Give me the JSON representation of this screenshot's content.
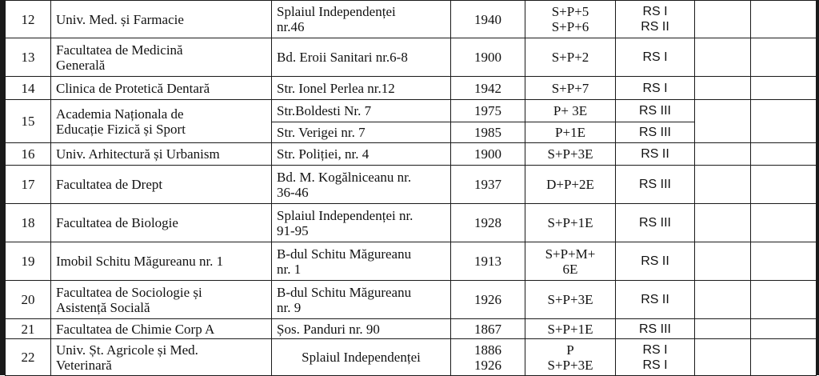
{
  "rows": [
    {
      "nr": "12",
      "name": [
        "Univ. Med. și  Farmacie"
      ],
      "addr": [
        "Splaiul Independenței",
        "nr.46"
      ],
      "year": [
        "1940"
      ],
      "reg": [
        "S+P+5",
        "S+P+6"
      ],
      "rs": [
        "RS I",
        "RS II"
      ]
    },
    {
      "nr": "13",
      "name": [
        "Facultatea de Medicină",
        "Generală"
      ],
      "addr": [
        "Bd. Eroii Sanitari nr.6-8"
      ],
      "year": [
        "1900"
      ],
      "reg": [
        "S+P+2"
      ],
      "rs": [
        "RS I"
      ]
    },
    {
      "nr": "14",
      "name": [
        "Clinica de Protetică Dentară"
      ],
      "addr": [
        "Str. Ionel Perlea nr.12"
      ],
      "year": [
        "1942"
      ],
      "reg": [
        "S+P+7"
      ],
      "rs": [
        "RS I"
      ]
    },
    {
      "nr": "15",
      "name": [
        "Academia Naționala de",
        "Educație Fizică și Sport"
      ],
      "sub": [
        {
          "addr": [
            "Str.Boldesti Nr. 7"
          ],
          "year": [
            "1975"
          ],
          "reg": [
            "P+ 3E"
          ],
          "rs": [
            "RS III"
          ]
        },
        {
          "addr": [
            "Str. Verigei nr. 7"
          ],
          "year": [
            "1985"
          ],
          "reg": [
            "P+1E"
          ],
          "rs": [
            "RS III"
          ]
        }
      ]
    },
    {
      "nr": "16",
      "name": [
        "Univ. Arhitectură și Urbanism"
      ],
      "addr": [
        "Str. Poliției, nr. 4"
      ],
      "year": [
        "1900"
      ],
      "reg": [
        "S+P+3E"
      ],
      "rs": [
        "RS II"
      ]
    },
    {
      "nr": "17",
      "name": [
        "Facultatea de Drept"
      ],
      "addr": [
        "Bd. M. Kogălniceanu nr.",
        "36-46"
      ],
      "year": [
        "1937"
      ],
      "reg": [
        "D+P+2E"
      ],
      "rs": [
        "RS III"
      ]
    },
    {
      "nr": "18",
      "name": [
        "Facultatea de Biologie"
      ],
      "addr": [
        "Splaiul Independenței nr.",
        "91-95"
      ],
      "year": [
        "1928"
      ],
      "reg": [
        "S+P+1E"
      ],
      "rs": [
        "RS III"
      ]
    },
    {
      "nr": "19",
      "name": [
        "Imobil Schitu Măgureanu nr. 1"
      ],
      "addr": [
        "B-dul Schitu Măgureanu",
        "nr. 1"
      ],
      "year": [
        "1913"
      ],
      "reg": [
        "S+P+M+",
        "6E"
      ],
      "rs": [
        "RS II"
      ]
    },
    {
      "nr": "20",
      "name": [
        "Facultatea de Sociologie și",
        "Asistență Socială"
      ],
      "addr": [
        "B-dul Schitu Măgureanu",
        "nr. 9"
      ],
      "year": [
        "1926"
      ],
      "reg": [
        "S+P+3E"
      ],
      "rs": [
        "RS II"
      ]
    },
    {
      "nr": "21",
      "name": [
        "Facultatea de Chimie Corp A"
      ],
      "addr": [
        "Șos. Panduri nr. 90"
      ],
      "year": [
        "1867"
      ],
      "reg": [
        "S+P+1E"
      ],
      "rs": [
        "RS III"
      ]
    },
    {
      "nr": "22",
      "name": [
        "Univ. Șt. Agricole și Med.",
        "Veterinară"
      ],
      "addr": [
        "Splaiul Independenței"
      ],
      "addr_center": true,
      "year": [
        "1886",
        "1926"
      ],
      "reg": [
        "P",
        "S+P+3E"
      ],
      "rs": [
        "RS I",
        "RS I"
      ]
    }
  ]
}
